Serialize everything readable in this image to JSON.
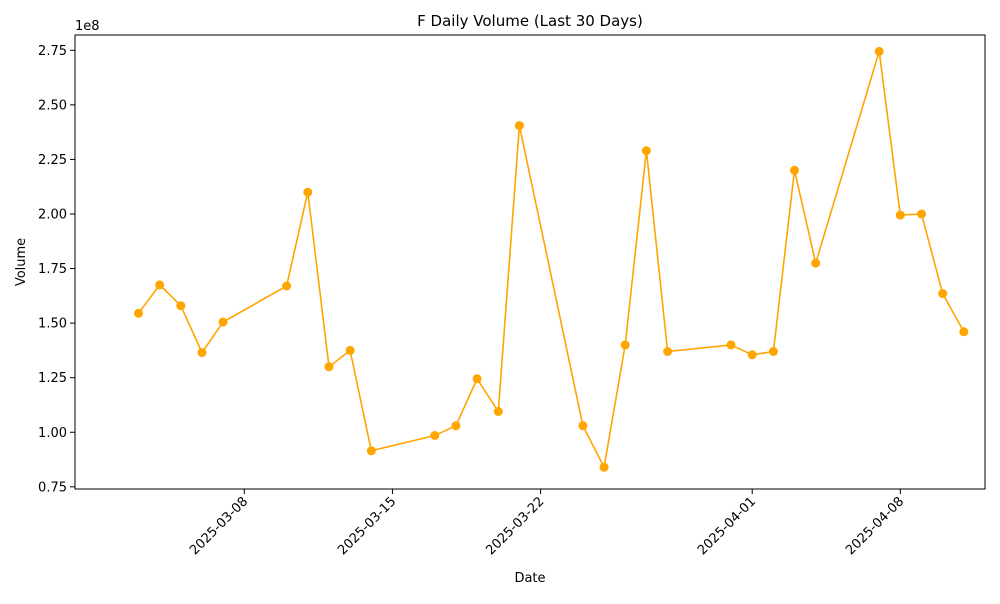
{
  "chart_data": {
    "type": "line",
    "title": "F Daily Volume (Last 30 Days)",
    "xlabel": "Date",
    "ylabel": "Volume",
    "y_multiplier_label": "1e8",
    "y_scale_factor": 100000000,
    "ylim": [
      0.74,
      2.82
    ],
    "xlim": [
      "2025-02-28",
      "2025-04-12"
    ],
    "y_ticks": [
      0.75,
      1.0,
      1.25,
      1.5,
      1.75,
      2.0,
      2.25,
      2.5,
      2.75
    ],
    "y_tick_labels": [
      "0.75",
      "1.00",
      "1.25",
      "1.50",
      "1.75",
      "2.00",
      "2.25",
      "2.50",
      "2.75"
    ],
    "x_ticks": [
      "2025-03-08",
      "2025-03-15",
      "2025-03-22",
      "2025-04-01",
      "2025-04-08"
    ],
    "x_tick_labels": [
      "2025-03-08",
      "2025-03-15",
      "2025-03-22",
      "2025-04-01",
      "2025-04-08"
    ],
    "grid": false,
    "legend": "none",
    "series": [
      {
        "color": "#FFA500",
        "marker": "circle",
        "points": [
          {
            "x": "2025-03-03",
            "y": 1.545
          },
          {
            "x": "2025-03-04",
            "y": 1.675
          },
          {
            "x": "2025-03-05",
            "y": 1.58
          },
          {
            "x": "2025-03-06",
            "y": 1.365
          },
          {
            "x": "2025-03-07",
            "y": 1.505
          },
          {
            "x": "2025-03-10",
            "y": 1.67
          },
          {
            "x": "2025-03-11",
            "y": 2.1
          },
          {
            "x": "2025-03-12",
            "y": 1.3
          },
          {
            "x": "2025-03-13",
            "y": 1.375
          },
          {
            "x": "2025-03-14",
            "y": 0.915
          },
          {
            "x": "2025-03-17",
            "y": 0.985
          },
          {
            "x": "2025-03-18",
            "y": 1.03
          },
          {
            "x": "2025-03-19",
            "y": 1.245
          },
          {
            "x": "2025-03-20",
            "y": 1.095
          },
          {
            "x": "2025-03-21",
            "y": 2.405
          },
          {
            "x": "2025-03-24",
            "y": 1.03
          },
          {
            "x": "2025-03-25",
            "y": 0.84
          },
          {
            "x": "2025-03-26",
            "y": 1.4
          },
          {
            "x": "2025-03-27",
            "y": 2.29
          },
          {
            "x": "2025-03-28",
            "y": 1.37
          },
          {
            "x": "2025-03-31",
            "y": 1.4
          },
          {
            "x": "2025-04-01",
            "y": 1.355
          },
          {
            "x": "2025-04-02",
            "y": 1.37
          },
          {
            "x": "2025-04-03",
            "y": 2.2
          },
          {
            "x": "2025-04-04",
            "y": 1.775
          },
          {
            "x": "2025-04-07",
            "y": 2.745
          },
          {
            "x": "2025-04-08",
            "y": 1.995
          },
          {
            "x": "2025-04-09",
            "y": 2.0
          },
          {
            "x": "2025-04-10",
            "y": 1.635
          },
          {
            "x": "2025-04-11",
            "y": 1.46
          }
        ]
      }
    ]
  }
}
